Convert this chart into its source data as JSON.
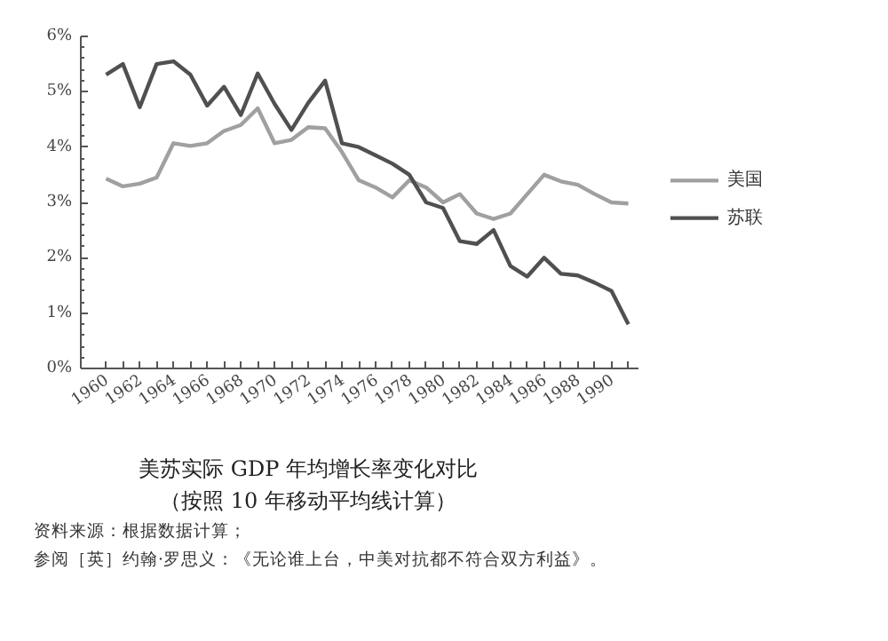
{
  "chart_data": {
    "type": "line",
    "title": "美苏实际 GDP 年均增长率变化对比",
    "subtitle": "（按照 10 年移动平均线计算）",
    "x": [
      1960,
      1961,
      1962,
      1963,
      1964,
      1965,
      1966,
      1967,
      1968,
      1969,
      1970,
      1971,
      1972,
      1973,
      1974,
      1975,
      1976,
      1977,
      1978,
      1979,
      1980,
      1981,
      1982,
      1983,
      1984,
      1985,
      1986,
      1987,
      1988,
      1989,
      1990,
      1991
    ],
    "series": [
      {
        "name": "美国",
        "color": "#a0a0a0",
        "values": [
          3.43,
          3.29,
          3.34,
          3.45,
          4.07,
          4.02,
          4.07,
          4.29,
          4.4,
          4.7,
          4.07,
          4.13,
          4.36,
          4.34,
          3.91,
          3.4,
          3.27,
          3.09,
          3.4,
          3.27,
          3.0,
          3.15,
          2.8,
          2.7,
          2.8,
          3.15,
          3.5,
          3.38,
          3.32,
          3.15,
          3.0,
          2.98
        ]
      },
      {
        "name": "苏联",
        "color": "#505050",
        "values": [
          5.31,
          5.5,
          4.72,
          5.5,
          5.55,
          5.31,
          4.75,
          5.09,
          4.58,
          5.33,
          4.78,
          4.31,
          4.8,
          5.2,
          4.07,
          4.0,
          3.85,
          3.7,
          3.5,
          3.0,
          2.9,
          2.3,
          2.25,
          2.5,
          1.85,
          1.66,
          2.0,
          1.71,
          1.68,
          1.55,
          1.4,
          0.8
        ]
      }
    ],
    "xlim": [
      1958.5,
      1991.6
    ],
    "xticks": [
      1960,
      {
        "value": 1961,
        "label": null
      },
      1962,
      {
        "value": 1963,
        "label": null
      },
      1964,
      {
        "value": 1965,
        "label": null
      },
      1966,
      {
        "value": 1967,
        "label": null
      },
      1968,
      {
        "value": 1969,
        "label": null
      },
      1970,
      {
        "value": 1971,
        "label": null
      },
      1972,
      {
        "value": 1973,
        "label": null
      },
      1974,
      {
        "value": 1975,
        "label": null
      },
      1976,
      {
        "value": 1977,
        "label": null
      },
      1978,
      {
        "value": 1979,
        "label": null
      },
      1980,
      {
        "value": 1981,
        "label": null
      },
      1982,
      {
        "value": 1983,
        "label": null
      },
      1984,
      {
        "value": 1985,
        "label": null
      },
      1986,
      {
        "value": 1987,
        "label": null
      },
      1988,
      {
        "value": 1989,
        "label": null
      },
      1990,
      {
        "value": 1991,
        "label": null
      }
    ],
    "ylim": [
      0,
      6
    ],
    "yticks": [
      {
        "value": 0,
        "label": "0%"
      },
      {
        "value": 1,
        "label": "1%"
      },
      {
        "value": 2,
        "label": "2%"
      },
      {
        "value": 3,
        "label": "3%"
      },
      {
        "value": 4,
        "label": "4%"
      },
      {
        "value": 5,
        "label": "5%"
      },
      {
        "value": 6,
        "label": "6%"
      }
    ],
    "legend": "right",
    "grid": false,
    "marker": "none",
    "line_style": "solid",
    "annotations": [
      "资料来源：根据数据计算；",
      "参阅［英］约翰·罗思义：《无论谁上台，中美对抗都不符合双方利益》。"
    ]
  }
}
